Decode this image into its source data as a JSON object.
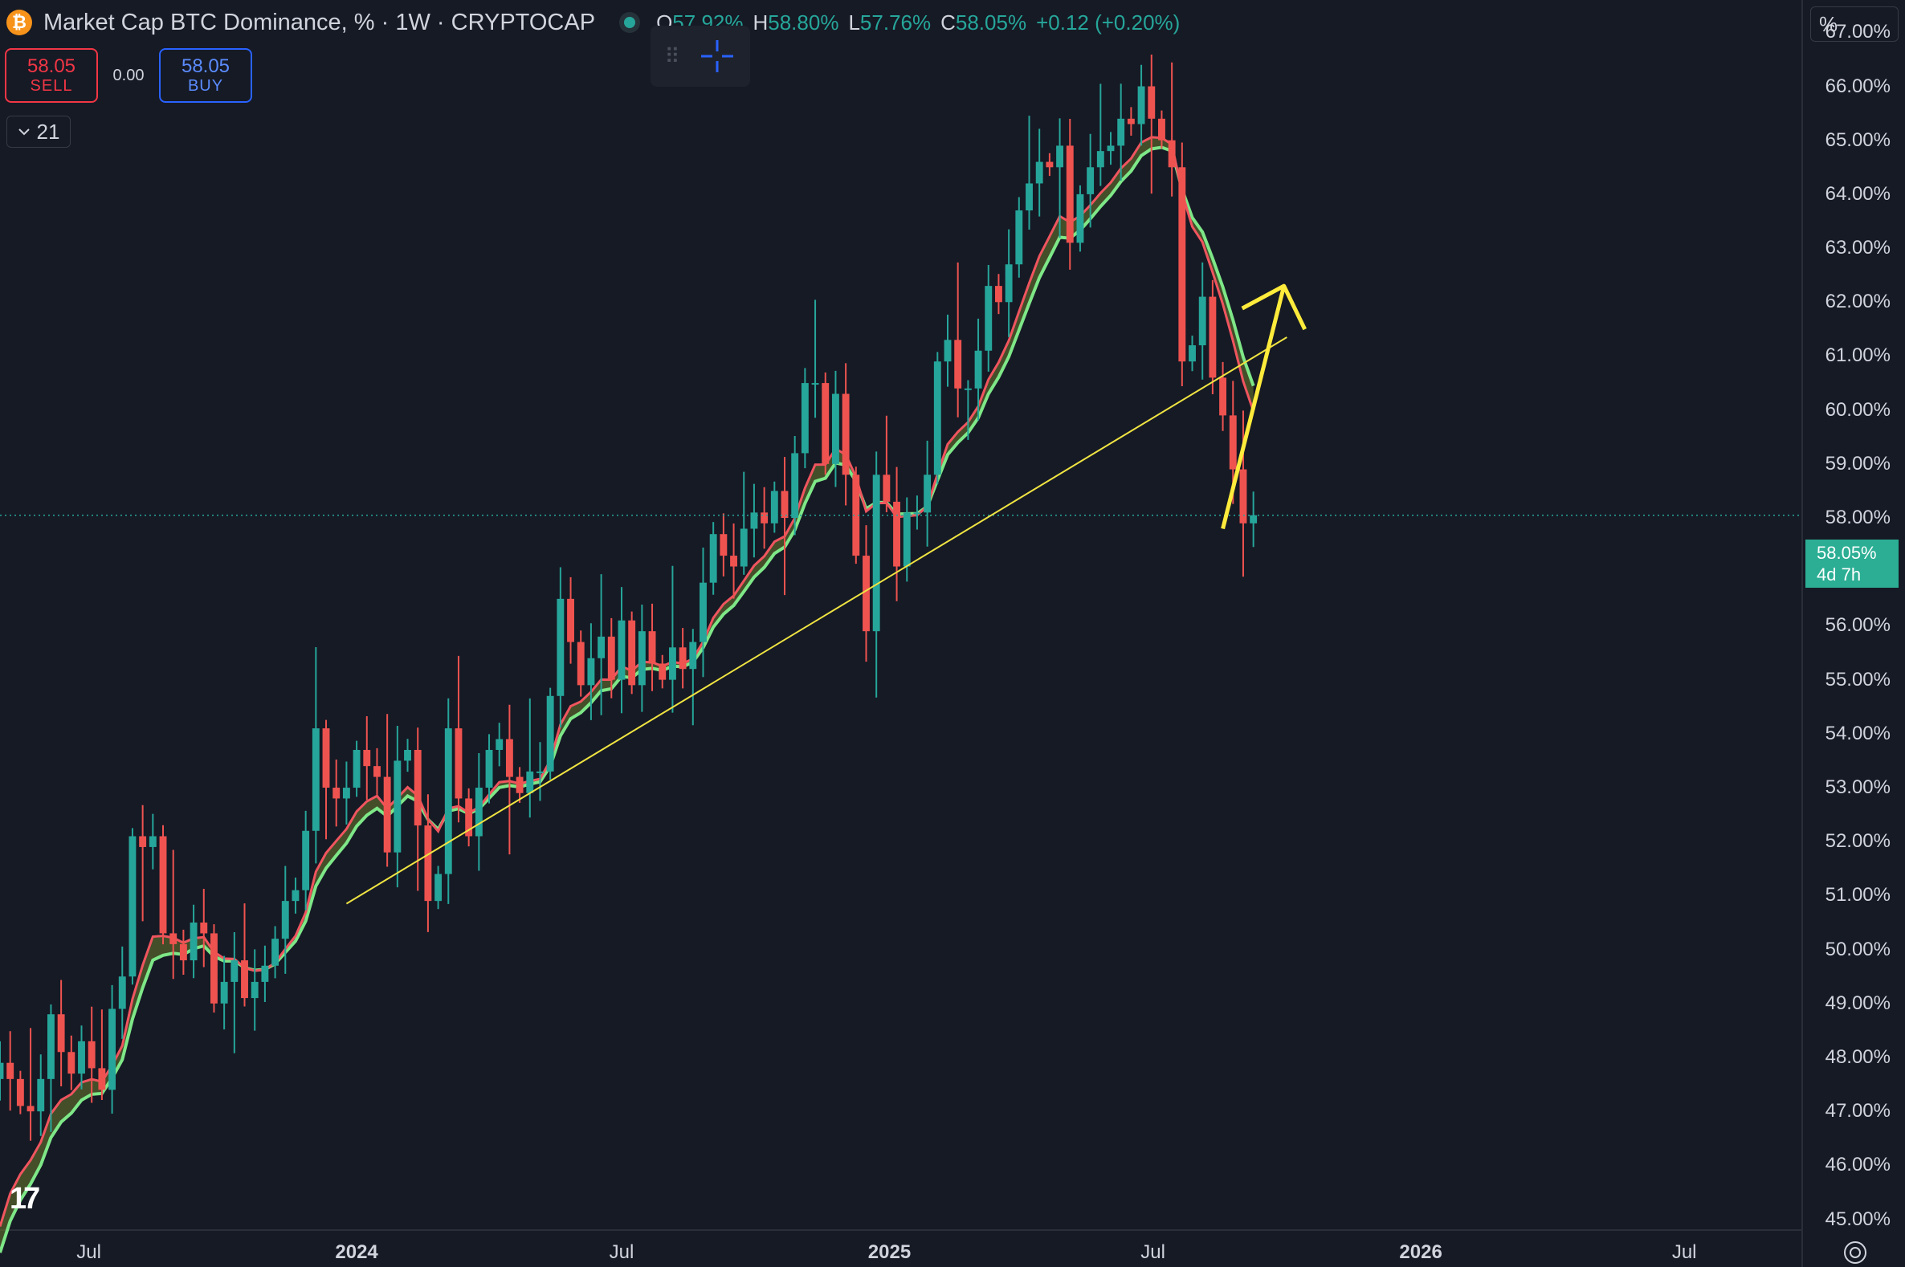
{
  "header": {
    "symbol_icon": "bitcoin-coin-icon",
    "title": "Market Cap BTC Dominance, % · 1W · CRYPTOCAP",
    "ohlc": {
      "o": "57.92%",
      "h": "58.80%",
      "l": "57.76%",
      "c": "58.05%",
      "change": "+0.12 (+0.20%)"
    }
  },
  "trade": {
    "sell_price": "58.05",
    "sell_label": "SELL",
    "spread": "0.00",
    "buy_price": "58.05",
    "buy_label": "BUY"
  },
  "indicator_toggle": {
    "icon": "chevron-down-icon",
    "value": "21"
  },
  "scale_mode": "%",
  "last_price": {
    "value": "58.05%",
    "countdown": "4d 7h"
  },
  "colors": {
    "up": "#26a69a",
    "down": "#ef5350",
    "ema_fast": "#f0555f",
    "ema_slow": "#7ee787",
    "trendline": "#f0e442",
    "arrow": "#ffeb3b"
  },
  "chart_data": {
    "type": "candlestick",
    "title": "Market Cap BTC Dominance, %",
    "interval": "1W",
    "y_scale": "linear",
    "ylim": [
      44.8,
      67.6
    ],
    "y_ticks": [
      "45.00%",
      "46.00%",
      "47.00%",
      "48.00%",
      "49.00%",
      "50.00%",
      "51.00%",
      "52.00%",
      "53.00%",
      "54.00%",
      "55.00%",
      "56.00%",
      "57.00%",
      "58.00%",
      "59.00%",
      "60.00%",
      "61.00%",
      "62.00%",
      "63.00%",
      "64.00%",
      "65.00%",
      "66.00%",
      "67.00%"
    ],
    "x_range": [
      "2023-05-01",
      "2026-09-20"
    ],
    "x_ticks": [
      {
        "label": "Jul",
        "date": "2023-07-01",
        "bold": false
      },
      {
        "label": "2024",
        "date": "2024-01-01",
        "bold": true
      },
      {
        "label": "Jul",
        "date": "2024-07-01",
        "bold": false
      },
      {
        "label": "2025",
        "date": "2025-01-01",
        "bold": true
      },
      {
        "label": "Jul",
        "date": "2025-07-01",
        "bold": false
      },
      {
        "label": "2026",
        "date": "2026-01-01",
        "bold": true
      },
      {
        "label": "Jul",
        "date": "2026-07-01",
        "bold": false
      }
    ],
    "first_candle_date": "2023-05-01",
    "closes": [
      47.9,
      47.6,
      47.1,
      47.0,
      47.6,
      48.8,
      48.1,
      47.7,
      48.3,
      47.8,
      47.4,
      48.9,
      49.5,
      52.1,
      51.9,
      52.1,
      50.3,
      50.1,
      49.8,
      50.5,
      50.3,
      49.0,
      49.4,
      49.8,
      49.1,
      49.4,
      49.7,
      50.2,
      50.9,
      51.1,
      52.2,
      54.1,
      53.0,
      52.8,
      53.0,
      53.7,
      53.4,
      53.2,
      51.8,
      53.5,
      53.7,
      52.3,
      50.9,
      51.4,
      54.1,
      52.8,
      52.1,
      53.0,
      53.7,
      53.9,
      53.2,
      52.9,
      53.3,
      53.3,
      54.7,
      56.5,
      55.7,
      54.9,
      55.4,
      55.8,
      55.0,
      56.1,
      54.9,
      55.9,
      55.3,
      55.0,
      55.6,
      55.2,
      55.7,
      56.8,
      57.7,
      57.3,
      57.1,
      57.8,
      58.1,
      57.9,
      58.5,
      58.0,
      59.2,
      60.5,
      60.5,
      59.0,
      60.3,
      58.8,
      57.3,
      55.9,
      58.8,
      58.3,
      57.1,
      58.1,
      58.1,
      58.8,
      60.9,
      61.3,
      60.4,
      60.4,
      61.1,
      62.3,
      62.0,
      62.7,
      63.7,
      64.2,
      64.6,
      64.5,
      64.9,
      63.1,
      64.0,
      64.5,
      64.8,
      64.9,
      65.4,
      65.3,
      66.0,
      65.4,
      65.0,
      64.5,
      60.9,
      61.2,
      62.1,
      60.6,
      59.9,
      58.9,
      57.9,
      58.05
    ],
    "highs_lows_note": "wick extremes follow each candle; notable spikes near 2024-12 low 54.6, 2025-06 high 66.0, 2025-03 high 64.3",
    "series": [
      {
        "name": "",
        "type": "ema",
        "color": "#f0555f"
      },
      {
        "name": "",
        "type": "ema",
        "color": "#7ee787"
      }
    ],
    "annotations": [
      {
        "type": "trendline",
        "from": {
          "date": "2023-12-25",
          "value": 50.85
        },
        "to": {
          "date": "2025-10-01",
          "value": 61.35
        }
      },
      {
        "type": "arrow",
        "from": {
          "date": "2025-08-18",
          "value": 57.8
        },
        "to": {
          "date": "2025-09-29",
          "value": 62.3
        }
      },
      {
        "type": "price-line",
        "value": 58.05
      }
    ]
  }
}
